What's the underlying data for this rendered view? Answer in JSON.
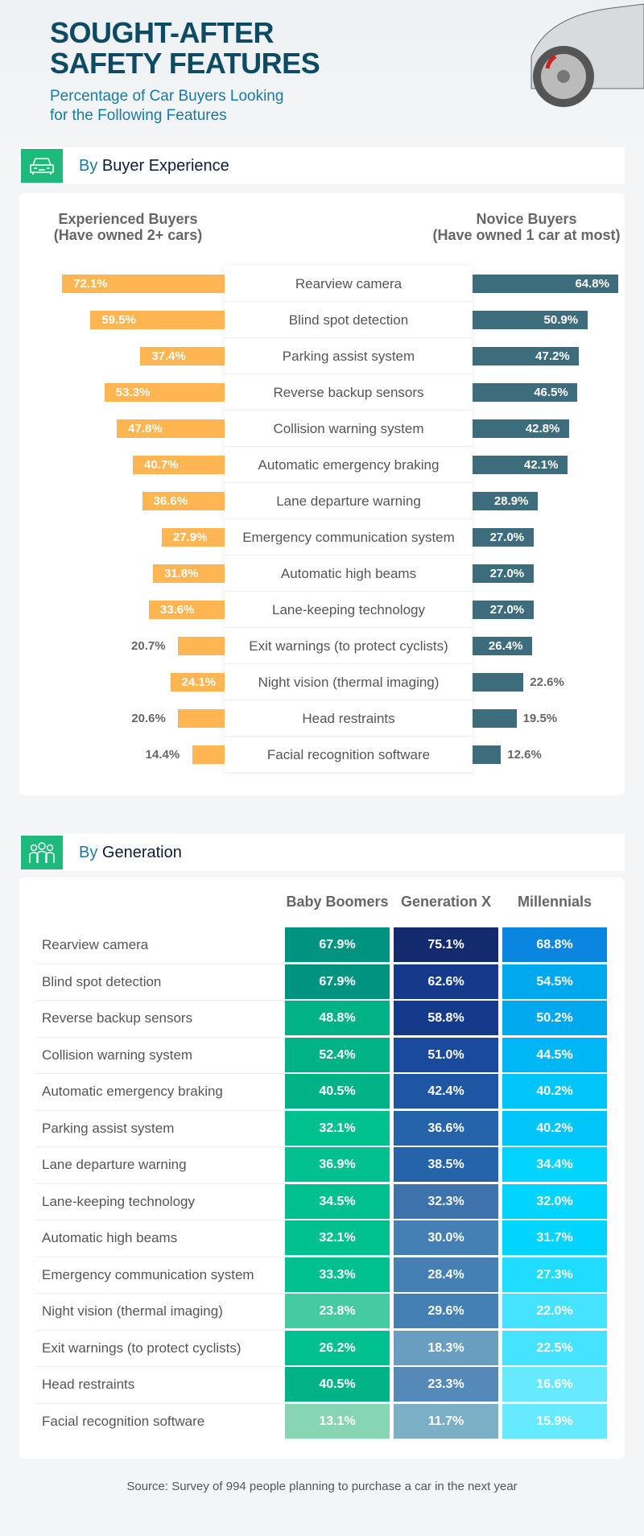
{
  "header": {
    "title_line1": "SOUGHT-AFTER",
    "title_line2": "SAFETY FEATURES",
    "subtitle_line1": "Percentage of Car Buyers Looking",
    "subtitle_line2": "for the Following Features"
  },
  "section1": {
    "by": "By",
    "rest": " Buyer Experience",
    "icon": "car-icon"
  },
  "section2": {
    "by": "By",
    "rest": " Generation",
    "icon": "people-icon"
  },
  "source": "Source: Survey of 994 people planning to purchase a car in the next year",
  "colors": {
    "experienced": "#ffb552",
    "novice": "#3d6d7d",
    "icon_bg": "#1dba7c",
    "title": "#0d4a63",
    "accent": "#1a7aa3"
  },
  "chart_data": [
    {
      "type": "bar",
      "title": "By Buyer Experience",
      "orientation": "horizontal-diverging",
      "series_headers": {
        "experienced_line1": "Experienced Buyers",
        "experienced_line2": "(Have owned 2+ cars)",
        "novice_line1": "Novice Buyers",
        "novice_line2": "(Have owned 1 car at most)"
      },
      "categories": [
        "Rearview camera",
        "Blind spot detection",
        "Parking assist system",
        "Reverse backup sensors",
        "Collision warning system",
        "Automatic emergency braking",
        "Lane departure warning",
        "Emergency communication system",
        "Automatic high beams",
        "Lane-keeping technology",
        "Exit warnings (to protect cyclists)",
        "Night vision (thermal imaging)",
        "Head restraints",
        "Facial recognition software"
      ],
      "series": [
        {
          "name": "Experienced Buyers (Have owned 2+ cars)",
          "values": [
            72.1,
            59.5,
            37.4,
            53.3,
            47.8,
            40.7,
            36.6,
            27.9,
            31.8,
            33.6,
            20.7,
            24.1,
            20.6,
            14.4
          ]
        },
        {
          "name": "Novice Buyers (Have owned 1 car at most)",
          "values": [
            64.8,
            50.9,
            47.2,
            46.5,
            42.8,
            42.1,
            28.9,
            27.0,
            27.0,
            27.0,
            26.4,
            22.6,
            19.5,
            12.6
          ]
        }
      ],
      "unit": "%"
    },
    {
      "type": "heatmap",
      "title": "By Generation",
      "columns": [
        "Baby Boomers",
        "Generation X",
        "Millennials"
      ],
      "rows": [
        "Rearview camera",
        "Blind spot detection",
        "Reverse backup sensors",
        "Collision warning system",
        "Automatic emergency braking",
        "Parking assist system",
        "Lane departure warning",
        "Lane-keeping technology",
        "Automatic high beams",
        "Emergency communication system",
        "Night vision (thermal imaging)",
        "Exit warnings (to protect cyclists)",
        "Head restraints",
        "Facial recognition software"
      ],
      "series": [
        {
          "name": "Baby Boomers",
          "values": [
            67.9,
            67.9,
            48.8,
            52.4,
            40.5,
            32.1,
            36.9,
            34.5,
            32.1,
            33.3,
            23.8,
            26.2,
            40.5,
            13.1
          ]
        },
        {
          "name": "Generation X",
          "values": [
            75.1,
            62.6,
            58.8,
            51.0,
            42.4,
            36.6,
            38.5,
            32.3,
            30.0,
            28.4,
            29.6,
            18.3,
            23.3,
            11.7
          ]
        },
        {
          "name": "Millennials",
          "values": [
            68.8,
            54.5,
            50.2,
            44.5,
            40.2,
            40.2,
            34.4,
            32.0,
            31.7,
            27.3,
            22.0,
            22.5,
            16.6,
            15.9
          ]
        }
      ],
      "unit": "%"
    }
  ]
}
